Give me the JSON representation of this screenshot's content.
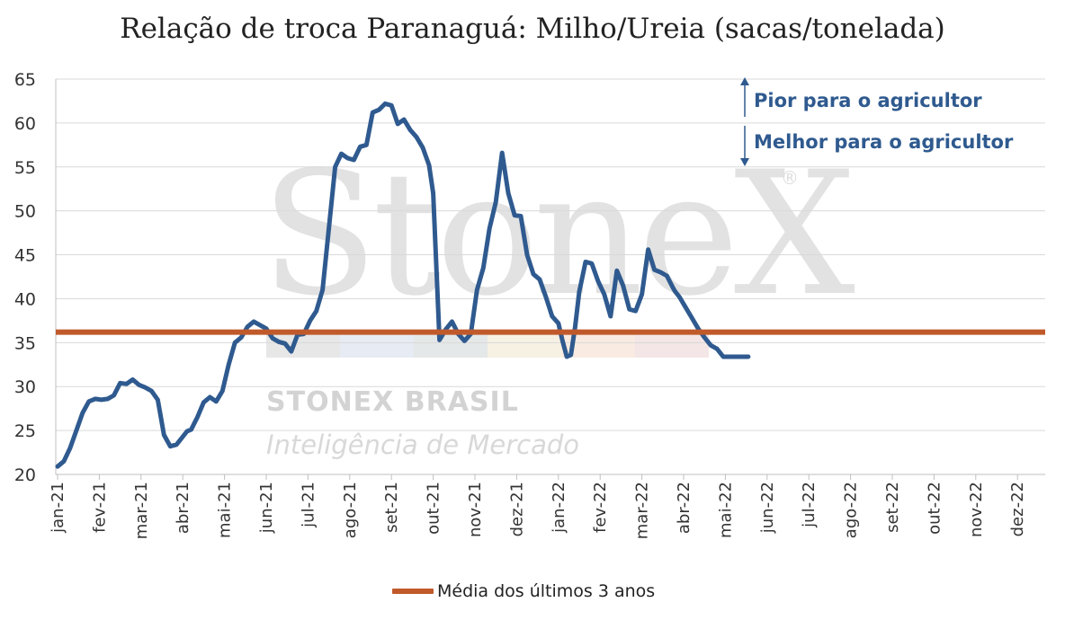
{
  "chart_data": {
    "type": "line",
    "title": "Relação de troca Paranaguá: Milho/Ureia (sacas/tonelada)",
    "ylim": [
      20,
      65
    ],
    "yticks": [
      20,
      25,
      30,
      35,
      40,
      45,
      50,
      55,
      60,
      65
    ],
    "categories": [
      "jan-21",
      "fev-21",
      "mar-21",
      "abr-21",
      "mai-21",
      "jun-21",
      "jul-21",
      "ago-21",
      "set-21",
      "out-21",
      "nov-21",
      "dez-21",
      "jan-22",
      "fev-22",
      "mar-22",
      "abr-22",
      "mai-22",
      "jun-22",
      "jul-22",
      "ago-22",
      "set-22",
      "out-22",
      "nov-22",
      "dez-22"
    ],
    "grid": true,
    "legend_position": "bottom",
    "series": [
      {
        "name": "",
        "color": "#2f5a8f",
        "x": [
          0.0,
          0.15,
          0.3,
          0.45,
          0.6,
          0.75,
          0.9,
          1.05,
          1.2,
          1.35,
          1.5,
          1.65,
          1.8,
          1.95,
          2.1,
          2.25,
          2.4,
          2.55,
          2.7,
          2.85,
          3.0,
          3.1,
          3.2,
          3.35,
          3.5,
          3.65,
          3.8,
          3.95,
          4.1,
          4.25,
          4.4,
          4.55,
          4.7,
          4.85,
          5.0,
          5.15,
          5.3,
          5.45,
          5.6,
          5.75,
          5.9,
          6.05,
          6.2,
          6.35,
          6.5,
          6.65,
          6.8,
          6.95,
          7.1,
          7.25,
          7.4,
          7.55,
          7.7,
          7.85,
          8.0,
          8.15,
          8.3,
          8.45,
          8.6,
          8.75,
          8.9,
          9.0,
          9.15,
          9.3,
          9.45,
          9.6,
          9.75,
          9.9,
          10.05,
          10.2,
          10.35,
          10.5,
          10.65,
          10.8,
          10.95,
          11.1,
          11.25,
          11.4,
          11.55,
          11.7,
          11.85,
          12.0,
          12.1,
          12.2,
          12.3,
          12.4,
          12.5,
          12.65,
          12.8,
          12.95,
          13.1,
          13.25,
          13.4,
          13.55,
          13.7,
          13.85,
          14.0,
          14.15,
          14.3,
          14.45,
          14.6,
          14.75,
          14.8,
          14.9,
          15.05,
          15.2,
          15.35,
          15.5,
          15.65,
          15.8,
          15.95,
          16.1,
          16.25,
          16.4,
          16.55,
          16.7,
          16.85,
          17.0,
          17.15,
          17.3,
          17.45,
          17.6,
          17.75,
          17.9,
          18.0,
          18.1,
          18.25,
          18.4,
          18.55,
          18.7,
          18.85,
          19.0,
          19.15,
          19.3,
          19.45,
          19.6,
          19.75,
          19.9,
          20.05,
          20.2,
          20.35,
          20.5,
          20.65,
          20.8,
          20.95,
          21.1,
          21.25,
          21.4,
          21.55,
          21.7,
          21.85,
          22.0,
          22.15,
          22.3,
          22.45,
          22.6,
          22.75,
          22.9,
          23.05
        ],
        "values": [
          20.9,
          21.5,
          23.0,
          25.0,
          27.0,
          28.3,
          28.6,
          28.5,
          28.6,
          29.0,
          30.4,
          30.3,
          30.8,
          30.2,
          29.9,
          29.5,
          28.5,
          24.5,
          23.2,
          23.4,
          24.3,
          24.9,
          25.1,
          26.5,
          28.2,
          28.8,
          28.3,
          29.5,
          32.5,
          35.0,
          35.6,
          36.8,
          37.4,
          37.0,
          36.6,
          35.5,
          35.1,
          34.9,
          34.0,
          35.9,
          36.0,
          37.5,
          38.6,
          41.0,
          48.0,
          55.0,
          56.5,
          56.0,
          55.8,
          57.3,
          57.5,
          61.2,
          61.5,
          62.2,
          62.0,
          59.9,
          60.4,
          59.2,
          58.4,
          57.2,
          55.2,
          52.0,
          35.3,
          36.5,
          37.4,
          36.0,
          35.2,
          36.0,
          41.0,
          43.5,
          48.0,
          51.0,
          56.6,
          52.0,
          49.5,
          49.4,
          45.0,
          42.8,
          42.2,
          40.2,
          38.0,
          37.2,
          35.2,
          33.4,
          33.6,
          36.8,
          40.8,
          44.2,
          44.0,
          42.0,
          40.5,
          38.0,
          43.2,
          41.5,
          38.8,
          38.6,
          40.5,
          45.6,
          43.3,
          43.0,
          42.6,
          41.2,
          40.8,
          40.2,
          39.0,
          37.8,
          36.6,
          35.6,
          34.7,
          34.3,
          33.4,
          33.4,
          33.4,
          33.4,
          33.4,
          33.4,
          33.4,
          33.4,
          33.4,
          33.4,
          33.4,
          33.4,
          33.4,
          33.4,
          33.4,
          33.4,
          33.4,
          33.4,
          33.4,
          33.4,
          33.4,
          33.4,
          33.4,
          33.4,
          33.4,
          33.4,
          33.4,
          33.4,
          33.4,
          33.4,
          33.4,
          33.4,
          33.4,
          33.4,
          33.4,
          33.4,
          33.4,
          33.4,
          33.4,
          33.4,
          33.4,
          33.4,
          33.4,
          33.4,
          33.4,
          33.4,
          33.4,
          33.4,
          33.4
        ]
      },
      {
        "name": "Média dos últimos 3 anos",
        "color": "#c05a2b",
        "constant": 36.2
      }
    ],
    "annotations": [
      "Pior para o agricultor",
      "Melhor para o agricultor"
    ]
  },
  "watermark": {
    "logo": "StoneX",
    "registered": "®",
    "brand": "STONEX BRASIL",
    "subtitle": "Inteligência de Mercado"
  },
  "colors": {
    "line": "#2f5a8f",
    "average": "#c05a2b",
    "grid": "#d9d9d9",
    "annotation": "#2f5a8f"
  }
}
